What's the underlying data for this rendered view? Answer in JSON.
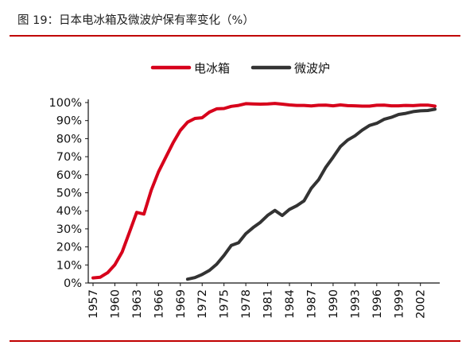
{
  "header": {
    "title": "图 19：日本电冰箱及微波炉保有率变化（%）"
  },
  "colors": {
    "accent": "#c00000",
    "series": [
      "#d7001b",
      "#333333"
    ]
  },
  "chart_data": {
    "type": "line",
    "title": "",
    "xlabel": "",
    "ylabel": "",
    "xlim": [
      1957,
      2004
    ],
    "ylim": [
      0,
      100
    ],
    "y_ticks": [
      0,
      10,
      20,
      30,
      40,
      50,
      60,
      70,
      80,
      90,
      100
    ],
    "y_tick_labels": [
      "0%",
      "10%",
      "20%",
      "30%",
      "40%",
      "50%",
      "60%",
      "70%",
      "80%",
      "90%",
      "100%"
    ],
    "x_tick_labels": [
      "1957",
      "1960",
      "1963",
      "1966",
      "1969",
      "1972",
      "1975",
      "1978",
      "1981",
      "1984",
      "1987",
      "1990",
      "1993",
      "1996",
      "1999",
      "2002"
    ],
    "grid": false,
    "legend_position": "top",
    "series": [
      {
        "name": "电冰箱",
        "x": [
          1957,
          1958,
          1959,
          1960,
          1961,
          1962,
          1963,
          1964,
          1965,
          1966,
          1967,
          1968,
          1969,
          1970,
          1971,
          1972,
          1973,
          1974,
          1975,
          1976,
          1977,
          1978,
          1979,
          1980,
          1981,
          1982,
          1983,
          1984,
          1985,
          1986,
          1987,
          1988,
          1989,
          1990,
          1991,
          1992,
          1993,
          1994,
          1995,
          1996,
          1997,
          1998,
          1999,
          2000,
          2001,
          2002,
          2003,
          2004
        ],
        "values": [
          2.8,
          3.2,
          5.7,
          10.1,
          17.2,
          28.0,
          39.1,
          38.2,
          51.4,
          61.6,
          69.7,
          77.6,
          84.6,
          89.1,
          91.2,
          91.6,
          94.7,
          96.5,
          96.7,
          97.9,
          98.4,
          99.4,
          99.2,
          99.1,
          99.2,
          99.5,
          99.1,
          98.7,
          98.4,
          98.4,
          98.1,
          98.5,
          98.6,
          98.2,
          98.7,
          98.3,
          98.2,
          98.0,
          98.0,
          98.5,
          98.6,
          98.2,
          98.2,
          98.4,
          98.3,
          98.6,
          98.6,
          98.0
        ]
      },
      {
        "name": "微波炉",
        "x": [
          1970,
          1971,
          1972,
          1973,
          1974,
          1975,
          1976,
          1977,
          1978,
          1979,
          1980,
          1981,
          1982,
          1983,
          1984,
          1985,
          1986,
          1987,
          1988,
          1989,
          1990,
          1991,
          1992,
          1993,
          1994,
          1995,
          1996,
          1997,
          1998,
          1999,
          2000,
          2001,
          2002,
          2003,
          2004
        ],
        "values": [
          2.1,
          3.0,
          4.7,
          7.0,
          10.4,
          15.3,
          20.8,
          22.3,
          27.3,
          30.7,
          33.6,
          37.5,
          40.2,
          37.4,
          40.8,
          42.8,
          45.5,
          52.5,
          57.2,
          64.2,
          69.7,
          75.6,
          79.2,
          81.6,
          84.7,
          87.3,
          88.5,
          90.7,
          91.8,
          93.4,
          94.0,
          95.0,
          95.4,
          95.6,
          96.3
        ]
      }
    ]
  }
}
